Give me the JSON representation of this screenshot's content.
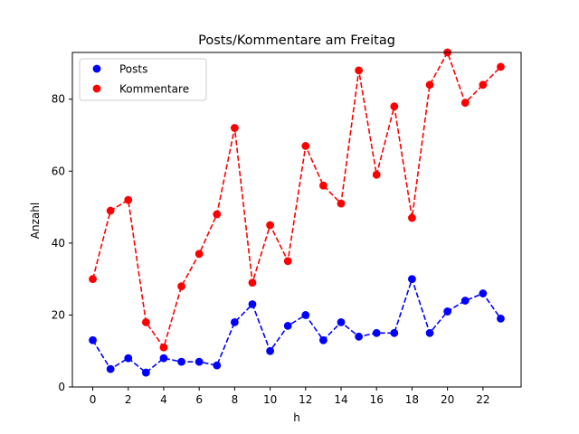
{
  "chart_data": {
    "type": "line",
    "title": "Posts/Kommentare am Freitag",
    "xlabel": "h",
    "ylabel": "Anzahl",
    "x": [
      0,
      1,
      2,
      3,
      4,
      5,
      6,
      7,
      8,
      9,
      10,
      11,
      12,
      13,
      14,
      15,
      16,
      17,
      18,
      19,
      20,
      21,
      22,
      23
    ],
    "xlim": [
      -1.15,
      24.15
    ],
    "ylim": [
      0,
      93
    ],
    "xticks": [
      0,
      2,
      4,
      6,
      8,
      10,
      12,
      14,
      16,
      18,
      20,
      22
    ],
    "yticks": [
      0,
      20,
      40,
      60,
      80
    ],
    "grid": false,
    "legend": "top-left",
    "series": [
      {
        "name": "Posts",
        "color": "#0000ff",
        "linestyle": "dashed",
        "marker": "circle",
        "values": [
          13,
          5,
          8,
          4,
          8,
          7,
          7,
          6,
          18,
          23,
          10,
          17,
          20,
          13,
          18,
          14,
          15,
          15,
          30,
          15,
          21,
          24,
          26,
          19
        ]
      },
      {
        "name": "Kommentare",
        "color": "#ff0000",
        "linestyle": "dashed",
        "marker": "circle",
        "values": [
          30,
          49,
          52,
          18,
          11,
          28,
          37,
          48,
          72,
          29,
          45,
          35,
          67,
          56,
          51,
          88,
          59,
          78,
          47,
          84,
          93,
          79,
          84,
          89
        ]
      }
    ]
  }
}
